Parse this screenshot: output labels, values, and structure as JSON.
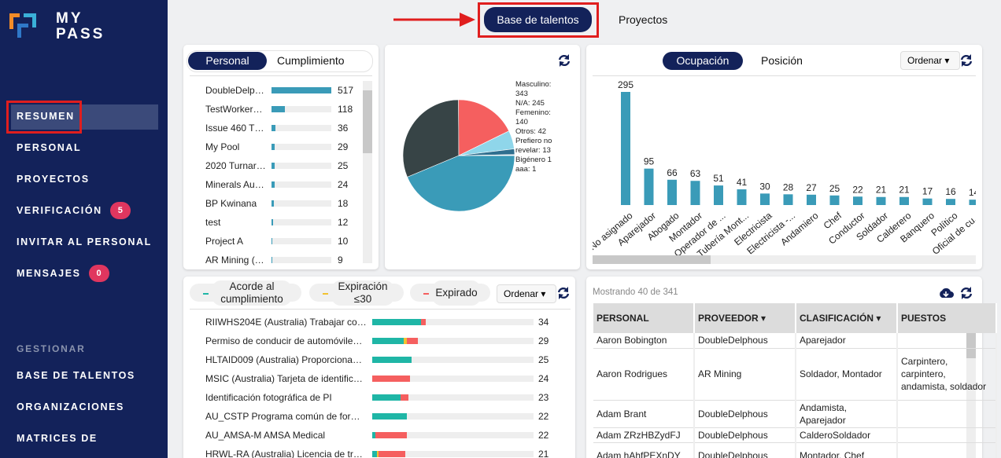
{
  "sidebar": {
    "logo_line1": "MY",
    "logo_line2": "PASS",
    "nav": [
      {
        "label": "RESUMEN"
      },
      {
        "label": "PERSONAL"
      },
      {
        "label": "PROYECTOS"
      },
      {
        "label": "VERIFICACIÓN",
        "badge": 5
      },
      {
        "label": "INVITAR AL PERSONAL"
      },
      {
        "label": "MENSAJES",
        "badge": 0
      }
    ],
    "section": "GESTIONAR",
    "manage": [
      "BASE DE TALENTOS",
      "ORGANIZACIONES",
      "MATRICES DE"
    ]
  },
  "top_tabs": [
    "Base de talentos",
    "Proyectos"
  ],
  "personal_panel": {
    "tabs": [
      "Personal",
      "Cumplimiento"
    ],
    "color": "#3a9bb8",
    "items": [
      {
        "name": "DoubleDelp…",
        "value": 517
      },
      {
        "name": "TestWorker…",
        "value": 118
      },
      {
        "name": "Issue 460 T…",
        "value": 36
      },
      {
        "name": "My Pool",
        "value": 29
      },
      {
        "name": "2020 Turnar…",
        "value": 25
      },
      {
        "name": "Minerals Au…",
        "value": 24
      },
      {
        "name": "BP Kwinana",
        "value": 18
      },
      {
        "name": "test",
        "value": 12
      },
      {
        "name": "Project A",
        "value": 10
      },
      {
        "name": "AR Mining (…",
        "value": 9
      }
    ]
  },
  "gender_chart": {
    "type": "pie",
    "values": [
      343,
      245,
      140,
      42,
      13,
      1,
      1
    ],
    "value_labels": [
      "Masculino: 343",
      "N/A: 245",
      "Femenino: 140",
      "Otros: 42",
      "Prefiero no revelar: 13",
      "Bigénero 1",
      "aaa: 1"
    ],
    "colors": [
      "#3a9bb8",
      "#374446",
      "#f55f5f",
      "#8fd6ea",
      "#2f6f8f",
      "#e0a030",
      "#7c5cbf"
    ]
  },
  "occupation_panel": {
    "tabs": [
      "Ocupación",
      "Posición"
    ],
    "sort": "Ordenar",
    "chart": {
      "type": "bar",
      "color": "#3a9bb8",
      "categories": [
        "No asignado",
        "Aparejador",
        "Abogado",
        "Montador",
        "Operador de ...",
        "Tubería Mont...",
        "Electricista",
        "Electricista -...",
        "Andamiero",
        "Chef",
        "Conductor",
        "Soldador",
        "Calderero",
        "Banquero",
        "Político",
        "Oficial de cu..."
      ],
      "values": [
        295,
        95,
        66,
        63,
        51,
        41,
        30,
        28,
        27,
        25,
        22,
        21,
        21,
        17,
        16,
        14
      ]
    }
  },
  "compliance_panel": {
    "legend": [
      {
        "label": "Acorde al cumplimiento",
        "color": "#1fb6a6"
      },
      {
        "label": "Expiración ≤30",
        "color": "#f2c230"
      },
      {
        "label": "Expirado",
        "color": "#f55f5f"
      }
    ],
    "sort": "Ordenar",
    "items": [
      {
        "name": "RIIWHS204E (Australia) Trabajar co…",
        "segments": [
          31,
          0,
          3
        ],
        "total": 34
      },
      {
        "name": "Permiso de conducir de automóvile…",
        "segments": [
          20,
          2,
          7
        ],
        "total": 29
      },
      {
        "name": "HLTAID009 (Australia) Proporciona…",
        "segments": [
          25,
          0,
          0
        ],
        "total": 25
      },
      {
        "name": "MSIC (Australia) Tarjeta de identific…",
        "segments": [
          0,
          0,
          24
        ],
        "total": 24
      },
      {
        "name": "Identificación fotográfica de PI",
        "segments": [
          18,
          0,
          5
        ],
        "total": 23
      },
      {
        "name": "AU_CSTP Programa común de for…",
        "segments": [
          22,
          0,
          0
        ],
        "total": 22
      },
      {
        "name": "AU_AMSA-M AMSA Medical",
        "segments": [
          2,
          0,
          20
        ],
        "total": 22
      },
      {
        "name": "HRWL-RA (Australia) Licencia de tr…",
        "segments": [
          3,
          1,
          17
        ],
        "total": 21
      }
    ]
  },
  "table_panel": {
    "caption": "Mostrando 40 de 341",
    "columns": [
      "PERSONAL",
      "PROVEEDOR",
      "CLASIFICACIÓN",
      "PUESTOS"
    ],
    "rows": [
      [
        "Aaron Bobington",
        "DoubleDelphous",
        "Aparejador",
        null
      ],
      [
        "Aaron Rodrigues",
        "AR Mining",
        "Soldador, Montador",
        "Carpintero, carpintero, andamista, soldador"
      ],
      [
        "Adam Brant",
        "DoubleDelphous",
        "Andamista, Aparejador",
        null
      ],
      [
        "Adam ZRzHBZydFJ",
        "DoubleDelphous",
        "CalderoSoldador",
        null
      ],
      [
        "Adam hAhfPEXnDY",
        "DoubleDelphous",
        "Montador, Chef",
        null
      ]
    ]
  }
}
